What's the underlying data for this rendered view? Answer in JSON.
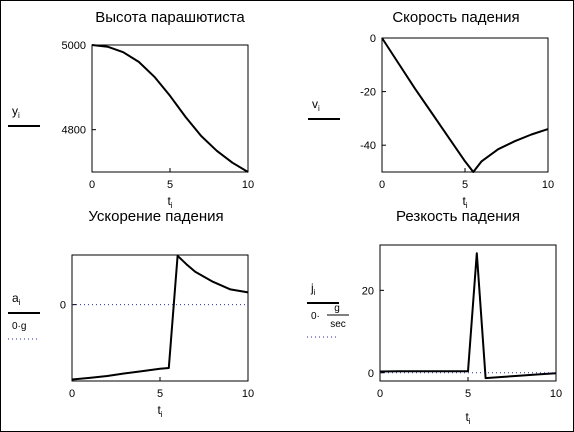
{
  "chart_data": [
    {
      "type": "line",
      "title": "Высота парашютиста",
      "xlim": [
        0,
        10
      ],
      "ylim": [
        4700,
        5000
      ],
      "xticks": [
        "0",
        "5",
        "10"
      ],
      "yticks": [
        "5000",
        "4800"
      ],
      "yticks_values": [
        5000,
        4800
      ],
      "xlabel": {
        "base": "t",
        "sub": "i"
      },
      "legend": [
        {
          "base": "y",
          "sub": "i",
          "style": "solid"
        }
      ],
      "series": [
        {
          "style": "solid",
          "x": [
            0,
            1,
            2,
            3,
            4,
            5,
            6,
            7,
            8,
            9,
            10
          ],
          "values": [
            5000,
            4996,
            4983,
            4960,
            4925,
            4880,
            4830,
            4785,
            4750,
            4722,
            4700
          ]
        }
      ]
    },
    {
      "type": "line",
      "title": "Скорость падения",
      "xlim": [
        0,
        10
      ],
      "ylim": [
        -50,
        0
      ],
      "xticks": [
        "0",
        "5",
        "10"
      ],
      "yticks": [
        "0",
        "-20",
        "-40"
      ],
      "yticks_values": [
        0,
        -20,
        -40
      ],
      "xlabel": {
        "base": "t",
        "sub": "i"
      },
      "legend": [
        {
          "base": "v",
          "sub": "i",
          "style": "solid"
        }
      ],
      "series": [
        {
          "style": "solid",
          "x": [
            0,
            1,
            2,
            3,
            4,
            5,
            5.5,
            6,
            7,
            8,
            9,
            10
          ],
          "values": [
            0,
            -9.5,
            -19,
            -28,
            -37,
            -46,
            -50,
            -46,
            -41.5,
            -38.5,
            -36,
            -34
          ]
        }
      ]
    },
    {
      "type": "line",
      "title": "Ускорение падения",
      "xlim": [
        0,
        10
      ],
      "ylim": [
        -10,
        6.5
      ],
      "xticks": [
        "0",
        "5",
        "10"
      ],
      "yticks": [
        "0"
      ],
      "yticks_values": [
        0
      ],
      "xlabel": {
        "base": "t",
        "sub": "i"
      },
      "legend": [
        {
          "base": "a",
          "sub": "i",
          "style": "solid"
        },
        {
          "text": "0·g",
          "style": "dotted"
        }
      ],
      "series": [
        {
          "style": "solid",
          "x": [
            0,
            1,
            2,
            3,
            4,
            5,
            5.5,
            6,
            6.5,
            7,
            8,
            9,
            10
          ],
          "values": [
            -9.8,
            -9.6,
            -9.35,
            -9.0,
            -8.7,
            -8.4,
            -8.3,
            6.4,
            5.3,
            4.3,
            3.0,
            2.0,
            1.6
          ]
        },
        {
          "style": "dotted",
          "x": [
            0,
            10
          ],
          "values": [
            0,
            0
          ]
        }
      ]
    },
    {
      "type": "line",
      "title": "Резкость падения",
      "xlim": [
        0,
        10
      ],
      "ylim": [
        -2,
        31
      ],
      "xticks": [
        "0",
        "5",
        "10"
      ],
      "yticks": [
        "20",
        "0"
      ],
      "yticks_values": [
        20,
        0
      ],
      "xlabel": {
        "base": "t",
        "sub": "i"
      },
      "legend": [
        {
          "base": "j",
          "sub": "i",
          "style": "solid"
        },
        {
          "text": "0·",
          "frac_num": "g",
          "frac_den": "sec",
          "style": "dotted"
        }
      ],
      "series": [
        {
          "style": "solid",
          "x": [
            0,
            1,
            2,
            3,
            4,
            5,
            5.5,
            6,
            7,
            8,
            9,
            10
          ],
          "values": [
            0.3,
            0.35,
            0.35,
            0.35,
            0.35,
            0.35,
            29,
            -1.3,
            -1.0,
            -0.7,
            -0.4,
            -0.1
          ]
        },
        {
          "style": "dotted",
          "x": [
            0,
            10
          ],
          "values": [
            0,
            0
          ]
        }
      ]
    }
  ]
}
